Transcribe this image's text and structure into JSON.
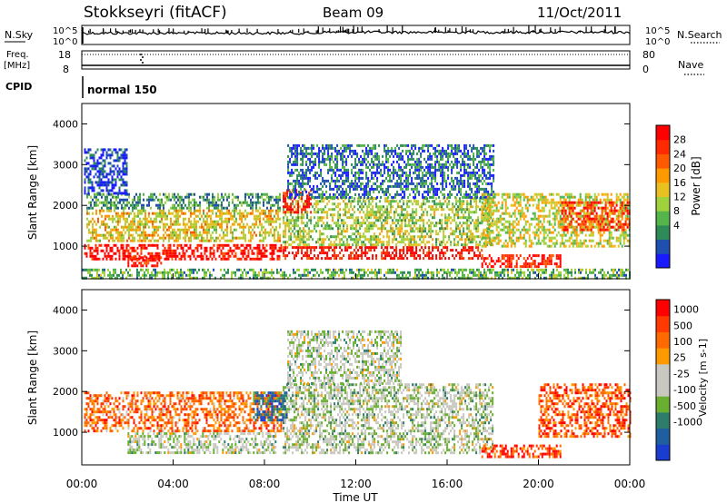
{
  "header": {
    "station": "Stokkseyri (fitACF)",
    "beam": "Beam 09",
    "date": "11/Oct/2011"
  },
  "left_labels": {
    "nsky": "N.Sky",
    "freq_line1": "Freq.",
    "freq_line2": "[MHz]",
    "cpid": "CPID"
  },
  "right_labels": {
    "nsearch": "N.Search",
    "nave": "Nave"
  },
  "cpid_value": "normal 150",
  "colors": {
    "power_scale": [
      "#1a1aff",
      "#1f4fb0",
      "#2e8b57",
      "#55b44a",
      "#9fd23c",
      "#e8c020",
      "#ff9900",
      "#ff5a00",
      "#ff2a00",
      "#ff0000"
    ],
    "velocity_scale": [
      "#1a3dd0",
      "#1f5fa0",
      "#2e7d6a",
      "#6ab030",
      "#c8c8c0",
      "#c8c8c0",
      "#ff9900",
      "#ff6a00",
      "#ff3a00",
      "#ff0000"
    ]
  },
  "chart_data": [
    {
      "type": "line",
      "name": "noise",
      "left_ticks": [
        "10^5",
        "10^0"
      ],
      "right_ticks": [
        "10^5",
        "10^0"
      ],
      "x": [
        "00:00",
        "04:00",
        "08:00",
        "12:00",
        "16:00",
        "20:00",
        "00:00"
      ]
    },
    {
      "type": "line",
      "name": "frequency",
      "left_ticks": [
        "18",
        "8"
      ],
      "right_ticks": [
        "80",
        "0"
      ]
    },
    {
      "type": "heatmap",
      "name": "power",
      "ylabel": "Slant Range [km]",
      "yticks": [
        1000,
        2000,
        3000,
        4000
      ],
      "ylim": [
        200,
        4500
      ],
      "xlim_hours": [
        0,
        24
      ],
      "colorbar_label": "Power [dB]",
      "colorbar_ticks": [
        "28",
        "24",
        "20",
        "16",
        "12",
        "8",
        "4"
      ],
      "bands": [
        {
          "t0": 0.1,
          "t1": 8.7,
          "r0": 700,
          "r1": 1050,
          "level": 0.95
        },
        {
          "t0": 0.2,
          "t1": 8.7,
          "r0": 1100,
          "r1": 1900,
          "level": 0.55
        },
        {
          "t0": 0.2,
          "t1": 8.7,
          "r0": 1900,
          "r1": 2300,
          "level": 0.3
        },
        {
          "t0": 2.0,
          "t1": 3.5,
          "r0": 500,
          "r1": 750,
          "level": 0.9
        },
        {
          "t0": 0.1,
          "t1": 2.0,
          "r0": 2300,
          "r1": 3400,
          "level": 0.1
        },
        {
          "t0": 8.8,
          "t1": 17.5,
          "r0": 700,
          "r1": 1000,
          "level": 0.95
        },
        {
          "t0": 8.8,
          "t1": 18.0,
          "r0": 1000,
          "r1": 2200,
          "level": 0.45
        },
        {
          "t0": 8.8,
          "t1": 10.0,
          "r0": 1800,
          "r1": 2400,
          "level": 0.9
        },
        {
          "t0": 9.0,
          "t1": 18.0,
          "r0": 2200,
          "r1": 3500,
          "level": 0.2
        },
        {
          "t0": 17.5,
          "t1": 21.0,
          "r0": 500,
          "r1": 800,
          "level": 0.9
        },
        {
          "t0": 17.5,
          "t1": 24.0,
          "r0": 1000,
          "r1": 2300,
          "level": 0.5
        },
        {
          "t0": 21.0,
          "t1": 24.0,
          "r0": 1400,
          "r1": 2100,
          "level": 0.85
        },
        {
          "t0": 0.0,
          "t1": 24.0,
          "r0": 200,
          "r1": 450,
          "level": 0.35
        }
      ]
    },
    {
      "type": "heatmap",
      "name": "velocity",
      "ylabel": "Slant Range [km]",
      "xlabel": "Time UT",
      "yticks": [
        1000,
        2000,
        3000,
        4000
      ],
      "ylim": [
        200,
        4500
      ],
      "xlim_hours": [
        0,
        24
      ],
      "x": [
        "00:00",
        "04:00",
        "08:00",
        "12:00",
        "16:00",
        "20:00",
        "00:00"
      ],
      "colorbar_label": "Velocity [m s-1]",
      "colorbar_ticks": [
        "1000",
        "500",
        "100",
        "25",
        "-25",
        "-100",
        "-500",
        "-1000"
      ],
      "bands": [
        {
          "t0": 0.1,
          "t1": 8.7,
          "r0": 1000,
          "r1": 2000,
          "level": 0.75
        },
        {
          "t0": 2.0,
          "t1": 8.5,
          "r0": 500,
          "r1": 1000,
          "level": 0.45
        },
        {
          "t0": 8.8,
          "t1": 18.0,
          "r0": 500,
          "r1": 2200,
          "level": 0.45
        },
        {
          "t0": 9.0,
          "t1": 14.0,
          "r0": 2200,
          "r1": 3500,
          "level": 0.45
        },
        {
          "t0": 17.5,
          "t1": 21.0,
          "r0": 400,
          "r1": 700,
          "level": 0.85
        },
        {
          "t0": 20.0,
          "t1": 24.0,
          "r0": 900,
          "r1": 2200,
          "level": 0.8
        },
        {
          "t0": 7.5,
          "t1": 9.0,
          "r0": 1300,
          "r1": 2000,
          "level": 0.2
        }
      ]
    }
  ]
}
